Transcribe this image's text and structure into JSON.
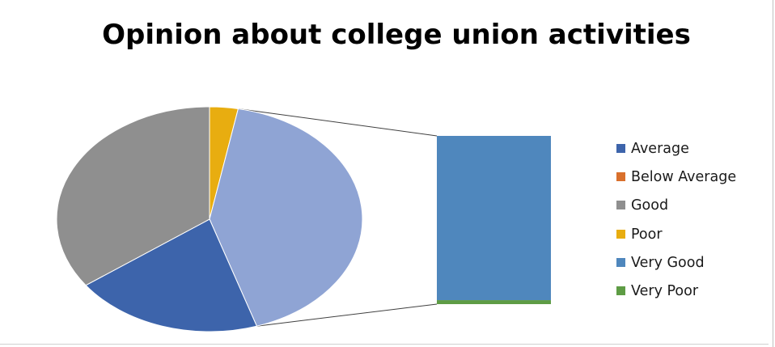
{
  "chart_data": {
    "type": "pie",
    "subtype": "bar-of-pie",
    "title": "Opinion about college union activities",
    "categories": [
      "Average",
      "Below Average",
      "Good",
      "Poor",
      "Very Good",
      "Very Poor"
    ],
    "values": [
      20,
      0,
      35,
      3,
      41,
      1
    ],
    "colors": [
      "#3d64ab",
      "#d9702c",
      "#8f8f8f",
      "#e8ad10",
      "#4f87bd",
      "#5e9c45"
    ],
    "pie_colors": {
      "Average": "#3d64ab",
      "Good": "#8f8f8f",
      "Poor": "#e8ad10",
      "Other": "#8fa4d4"
    },
    "secondary_bar": [
      "Very Poor",
      "Very Good",
      "Below Average"
    ],
    "legend_position": "right"
  }
}
